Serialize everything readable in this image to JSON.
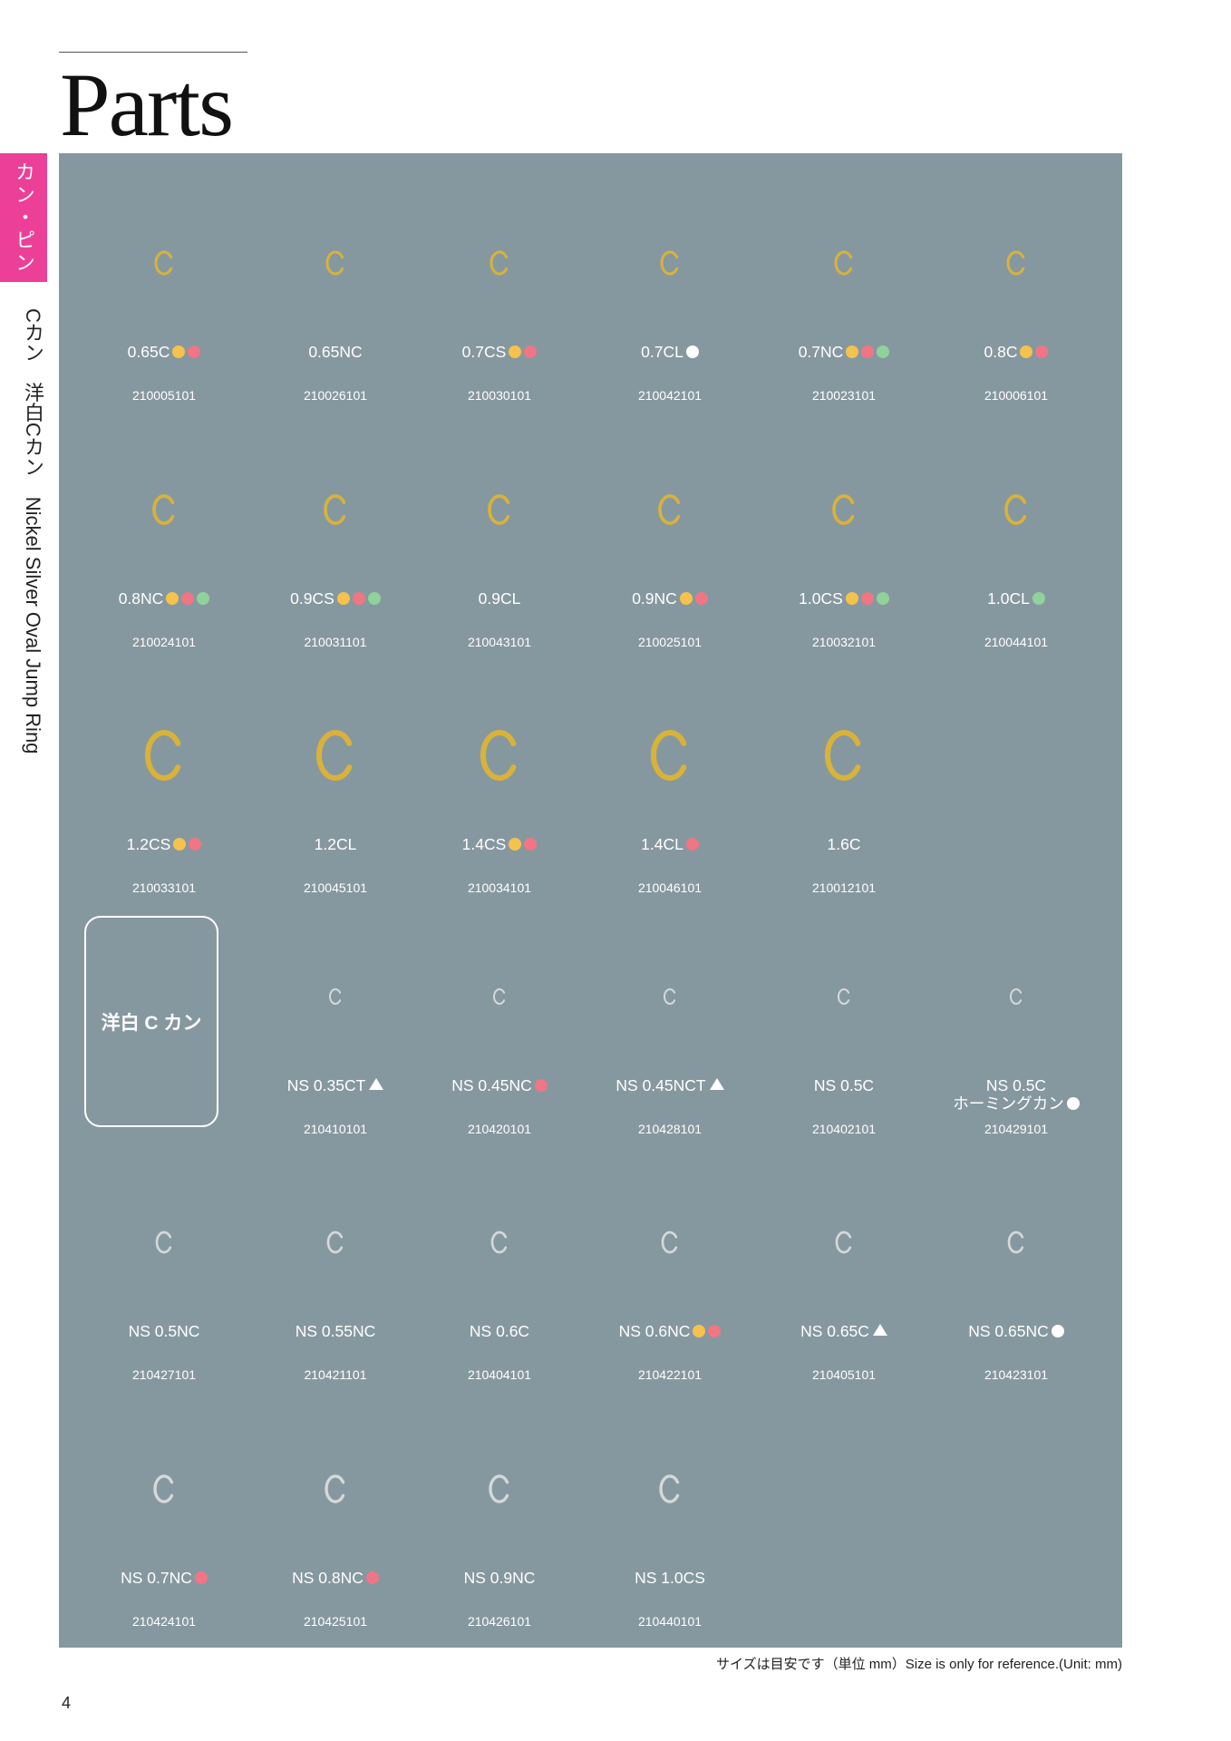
{
  "header": {
    "title": "Parts"
  },
  "side_tab": "カン・ピン",
  "side_label": "Cカン　洋白Cカン　Nickel Silver Oval Jump Ring",
  "groups": [
    {
      "ring_color": "#d9b23a",
      "items": [
        {
          "name": "0.65C",
          "dots": [
            "#f4c24d",
            "#f07585"
          ],
          "code": "210005101"
        },
        {
          "name": "0.65NC",
          "code": "210026101"
        },
        {
          "name": "0.7CS",
          "dots": [
            "#f4c24d",
            "#f07585"
          ],
          "code": "210030101"
        },
        {
          "name": "0.7CL",
          "dots": [
            "#ffffff"
          ],
          "code": "210042101"
        },
        {
          "name": "0.7NC",
          "dots": [
            "#f4c24d",
            "#f07585",
            "#8fd39a"
          ],
          "code": "210023101"
        },
        {
          "name": "0.8C",
          "dots": [
            "#f4c24d",
            "#f07585"
          ],
          "code": "210006101"
        },
        {
          "name": "0.8NC",
          "dots": [
            "#f4c24d",
            "#f07585",
            "#8fd39a"
          ],
          "code": "210024101"
        },
        {
          "name": "0.9CS",
          "dots": [
            "#f4c24d",
            "#f07585",
            "#8fd39a"
          ],
          "code": "210031101"
        },
        {
          "name": "0.9CL",
          "code": "210043101"
        },
        {
          "name": "0.9NC",
          "dots": [
            "#f4c24d",
            "#f07585"
          ],
          "code": "210025101"
        },
        {
          "name": "1.0CS",
          "dots": [
            "#f4c24d",
            "#f07585",
            "#8fd39a"
          ],
          "code": "210032101"
        },
        {
          "name": "1.0CL",
          "dots": [
            "#8fd39a"
          ],
          "code": "210044101"
        },
        {
          "name": "1.2CS",
          "dots": [
            "#f4c24d",
            "#f07585"
          ],
          "code": "210033101"
        },
        {
          "name": "1.2CL",
          "code": "210045101"
        },
        {
          "name": "1.4CS",
          "dots": [
            "#f4c24d",
            "#f07585"
          ],
          "code": "210034101"
        },
        {
          "name": "1.4CL",
          "dots": [
            "#f07585"
          ],
          "code": "210046101"
        },
        {
          "name": "1.6C",
          "code": "210012101"
        }
      ]
    },
    {
      "ring_color": "#d5d9da",
      "badge": "洋白 C カン",
      "items": [
        {
          "name": "NS 0.35CT",
          "triangle": true,
          "code": "210410101"
        },
        {
          "name": "NS 0.45NC",
          "dots": [
            "#f07585"
          ],
          "code": "210420101"
        },
        {
          "name": "NS 0.45NCT",
          "triangle": true,
          "code": "210428101"
        },
        {
          "name": "NS 0.5C",
          "code": "210402101"
        },
        {
          "name": "NS 0.5C",
          "note": "ホーミングカン",
          "dots": [
            "#ffffff"
          ],
          "code": "210429101"
        },
        {
          "name": "NS 0.5NC",
          "code": "210427101"
        },
        {
          "name": "NS 0.55NC",
          "code": "210421101"
        },
        {
          "name": "NS 0.6C",
          "code": "210404101"
        },
        {
          "name": "NS 0.6NC",
          "dots": [
            "#f4c24d",
            "#f07585"
          ],
          "code": "210422101"
        },
        {
          "name": "NS 0.65C",
          "triangle": true,
          "code": "210405101"
        },
        {
          "name": "NS 0.65NC",
          "dots": [
            "#ffffff"
          ],
          "code": "210423101"
        },
        {
          "name": "NS 0.7NC",
          "dots": [
            "#f07585"
          ],
          "code": "210424101"
        },
        {
          "name": "NS 0.8NC",
          "dots": [
            "#f07585"
          ],
          "code": "210425101"
        },
        {
          "name": "NS 0.9NC",
          "code": "210426101"
        },
        {
          "name": "NS 1.0CS",
          "code": "210440101"
        }
      ]
    }
  ],
  "footer": {
    "note": "サイズは目安です（単位 mm）Size is only for reference.(Unit: mm)",
    "page": "4"
  }
}
